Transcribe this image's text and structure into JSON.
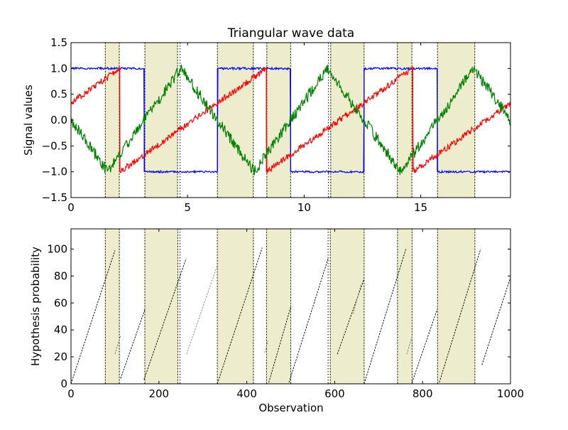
{
  "chart_data": [
    {
      "type": "line",
      "title": "Triangular wave data",
      "xlabel": "",
      "ylabel": "Signal values",
      "xlim": [
        0,
        18.85
      ],
      "ylim": [
        -1.5,
        1.5
      ],
      "xticks": [
        0,
        5,
        10,
        15
      ],
      "yticks": [
        -1.5,
        -1.0,
        -0.5,
        0.0,
        0.5,
        1.0,
        1.5
      ],
      "xtick_labels": [
        "0",
        "5",
        "10",
        "15"
      ],
      "ytick_labels": [
        "−1.5",
        "−1.0",
        "−0.5",
        "0.0",
        "0.5",
        "1.0",
        "1.5"
      ],
      "shaded_regions": [
        [
          1.47,
          2.07
        ],
        [
          3.17,
          4.57
        ],
        [
          6.28,
          7.82
        ],
        [
          8.4,
          9.42
        ],
        [
          11.14,
          12.57
        ],
        [
          14.0,
          14.62
        ],
        [
          15.72,
          17.32
        ]
      ],
      "vertical_dotted_lines": [
        1.47,
        2.07,
        3.17,
        4.57,
        4.68,
        6.28,
        7.82,
        8.4,
        9.42,
        11.04,
        11.14,
        12.57,
        14.0,
        14.62,
        15.72,
        17.32
      ],
      "series": [
        {
          "color": "#0000ff",
          "kind": "square",
          "x": [
            0,
            3.14,
            3.14,
            6.28,
            6.28,
            9.42,
            9.42,
            12.57,
            12.57,
            15.71,
            15.71,
            18.85
          ],
          "values": [
            1.0,
            1.0,
            -1.0,
            -1.0,
            1.0,
            1.0,
            -1.0,
            -1.0,
            1.0,
            1.0,
            -1.0,
            -1.0
          ]
        },
        {
          "color": "#ff0000",
          "kind": "sawtooth",
          "x": [
            0,
            2.09,
            2.09,
            8.38,
            8.38,
            14.66,
            14.66,
            18.85
          ],
          "values": [
            0.33,
            1.0,
            -1.0,
            1.0,
            -1.0,
            1.0,
            -1.0,
            0.33
          ]
        },
        {
          "color": "#008000",
          "kind": "triangle",
          "x": [
            0,
            1.57,
            4.71,
            7.85,
            10.99,
            14.14,
            17.28,
            18.85
          ],
          "values": [
            0.0,
            -1.0,
            1.0,
            -1.0,
            1.0,
            -1.0,
            1.0,
            0.0
          ]
        }
      ]
    },
    {
      "type": "line",
      "title": "",
      "xlabel": "Observation",
      "ylabel": "Hypothesis probability",
      "xlim": [
        0,
        1000
      ],
      "ylim": [
        0,
        115
      ],
      "xticks": [
        0,
        200,
        400,
        600,
        800,
        1000
      ],
      "yticks": [
        0,
        20,
        40,
        60,
        80,
        100
      ],
      "xtick_labels": [
        "0",
        "200",
        "400",
        "600",
        "800",
        "1000"
      ],
      "ytick_labels": [
        "0",
        "20",
        "40",
        "60",
        "80",
        "100"
      ],
      "shaded_regions": [
        [
          78,
          110
        ],
        [
          168,
          243
        ],
        [
          333,
          415
        ],
        [
          445,
          500
        ],
        [
          590,
          667
        ],
        [
          743,
          776
        ],
        [
          834,
          919
        ]
      ],
      "vertical_dotted_lines": [
        78,
        110,
        168,
        243,
        248,
        333,
        415,
        445,
        500,
        585,
        590,
        667,
        743,
        776,
        834,
        919
      ],
      "segments": [
        {
          "x": [
            0,
            100
          ],
          "values": [
            0,
            99
          ],
          "color": "#000000"
        },
        {
          "x": [
            100,
            113
          ],
          "values": [
            22,
            36
          ],
          "color": "#777777"
        },
        {
          "x": [
            113,
            168
          ],
          "values": [
            4,
            55
          ],
          "color": "#000000"
        },
        {
          "x": [
            166,
            262
          ],
          "values": [
            3,
            93
          ],
          "color": "#000000"
        },
        {
          "x": [
            263,
            333
          ],
          "values": [
            22,
            88
          ],
          "color": "#888888"
        },
        {
          "x": [
            333,
            435
          ],
          "values": [
            0,
            101
          ],
          "color": "#000000"
        },
        {
          "x": [
            441,
            448
          ],
          "values": [
            23,
            32
          ],
          "color": "#777777"
        },
        {
          "x": [
            450,
            500
          ],
          "values": [
            1,
            57
          ],
          "color": "#000000"
        },
        {
          "x": [
            496,
            585
          ],
          "values": [
            1,
            93
          ],
          "color": "#000000"
        },
        {
          "x": [
            606,
            667
          ],
          "values": [
            22,
            78
          ],
          "color": "#000000"
        },
        {
          "x": [
            642,
            660
          ],
          "values": [
            52,
            74
          ],
          "color": "#888888"
        },
        {
          "x": [
            667,
            762
          ],
          "values": [
            0,
            100
          ],
          "color": "#000000"
        },
        {
          "x": [
            764,
            776
          ],
          "values": [
            22,
            35
          ],
          "color": "#777777"
        },
        {
          "x": [
            776,
            833
          ],
          "values": [
            1,
            55
          ],
          "color": "#000000"
        },
        {
          "x": [
            838,
            932
          ],
          "values": [
            1,
            100
          ],
          "color": "#000000"
        },
        {
          "x": [
            935,
            1000
          ],
          "values": [
            14,
            79
          ],
          "color": "#000000"
        }
      ]
    }
  ]
}
